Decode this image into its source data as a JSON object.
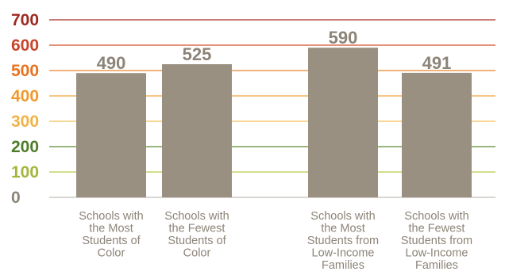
{
  "chart_data": {
    "type": "bar",
    "title": "",
    "xlabel": "",
    "ylabel": "",
    "ylim": [
      0,
      700
    ],
    "yticks": [
      0,
      100,
      200,
      300,
      400,
      500,
      600,
      700
    ],
    "grid": true,
    "legend": "none",
    "categories": [
      [
        "Schools with",
        "the Most",
        "Students of",
        "Color"
      ],
      [
        "Schools with",
        "the Fewest",
        "Students of",
        "Color"
      ],
      [
        "Schools with",
        "the Most",
        "Students from",
        "Low-Income",
        "Families"
      ],
      [
        "Schools with",
        "the Fewest",
        "Students from",
        "Low-Income",
        "Families"
      ]
    ],
    "values": [
      490,
      525,
      590,
      491
    ],
    "value_labels": [
      "490",
      "525",
      "590",
      "491"
    ]
  },
  "colors": {
    "bar": "#9a9082",
    "value_label": "#8c8478",
    "category_label": "#8c8478",
    "tick_colors": {
      "0": "#8c8478",
      "100": "#a4b63a",
      "200": "#4e7d2a",
      "300": "#f0b347",
      "400": "#f19a2b",
      "500": "#e8731e",
      "600": "#c9442a",
      "700": "#9e2a1f"
    },
    "grid_colors": {
      "100": "#b7c94b",
      "200": "#5b8a2f",
      "300": "#f2c05c",
      "400": "#f0a43c",
      "500": "#ea8227",
      "600": "#cf4f2e",
      "700": "#a83224"
    },
    "axis_line": "#b5aea4"
  }
}
